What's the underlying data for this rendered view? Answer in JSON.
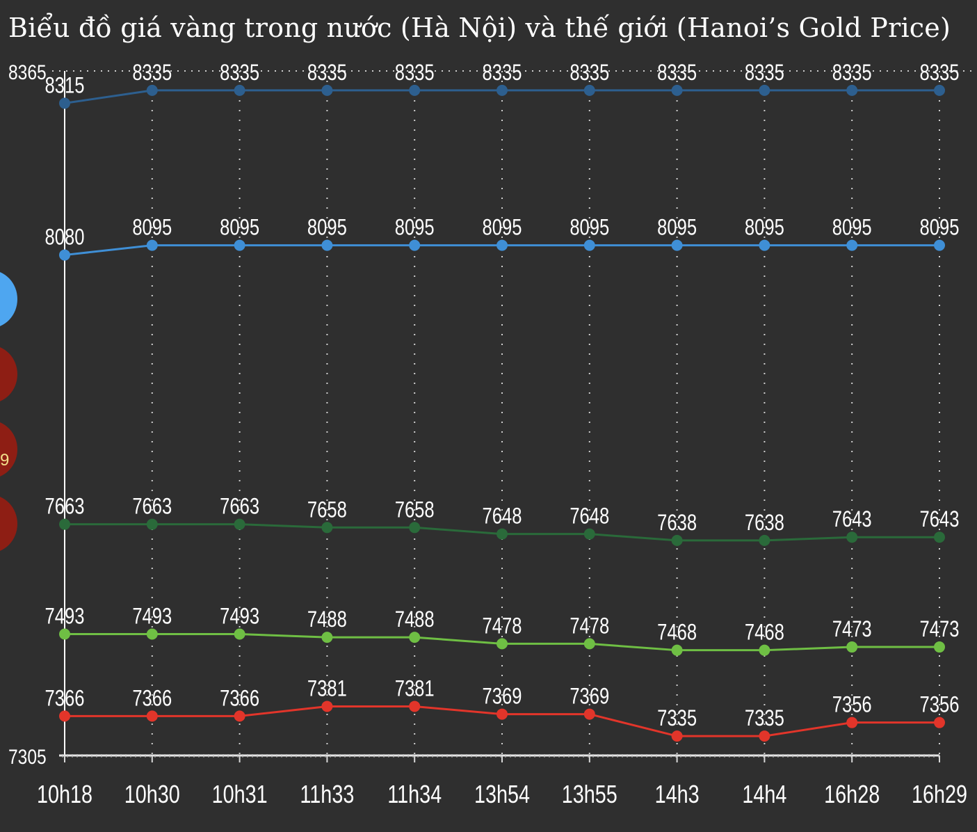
{
  "colors": {
    "background": "#2f2f2f",
    "grid": "#cfcfcf",
    "axis": "#ffffff",
    "text": "#ffffff",
    "legend_blue": "#4ea6f0",
    "legend_red": "#8e1e14"
  },
  "legend_partial_text": "9",
  "chart_data": {
    "type": "line",
    "title": "Biểu đồ giá vàng trong nước (Hà Nội) và thế giới (Hanoi’s Gold Price)",
    "xlabel": "",
    "ylabel": "",
    "ylim": [
      7305,
      8365
    ],
    "y_tick_labels": [
      "8365",
      "7305"
    ],
    "categories": [
      "10h18",
      "10h30",
      "10h31",
      "11h33",
      "11h34",
      "13h54",
      "13h55",
      "14h3",
      "14h4",
      "16h28",
      "16h29"
    ],
    "grid": true,
    "series": [
      {
        "color": "#2d5f8f",
        "values": [
          8315,
          8335,
          8335,
          8335,
          8335,
          8335,
          8335,
          8335,
          8335,
          8335,
          8335
        ]
      },
      {
        "color": "#3f8fd6",
        "values": [
          8080,
          8095,
          8095,
          8095,
          8095,
          8095,
          8095,
          8095,
          8095,
          8095,
          8095
        ]
      },
      {
        "color": "#2a6a3a",
        "values": [
          7663,
          7663,
          7663,
          7658,
          7658,
          7648,
          7648,
          7638,
          7638,
          7643,
          7643
        ]
      },
      {
        "color": "#6fbf44",
        "values": [
          7493,
          7493,
          7493,
          7488,
          7488,
          7478,
          7478,
          7468,
          7468,
          7473,
          7473
        ]
      },
      {
        "color": "#e2352a",
        "values": [
          7366,
          7366,
          7366,
          7381,
          7381,
          7369,
          7369,
          7335,
          7335,
          7356,
          7356
        ]
      }
    ]
  }
}
